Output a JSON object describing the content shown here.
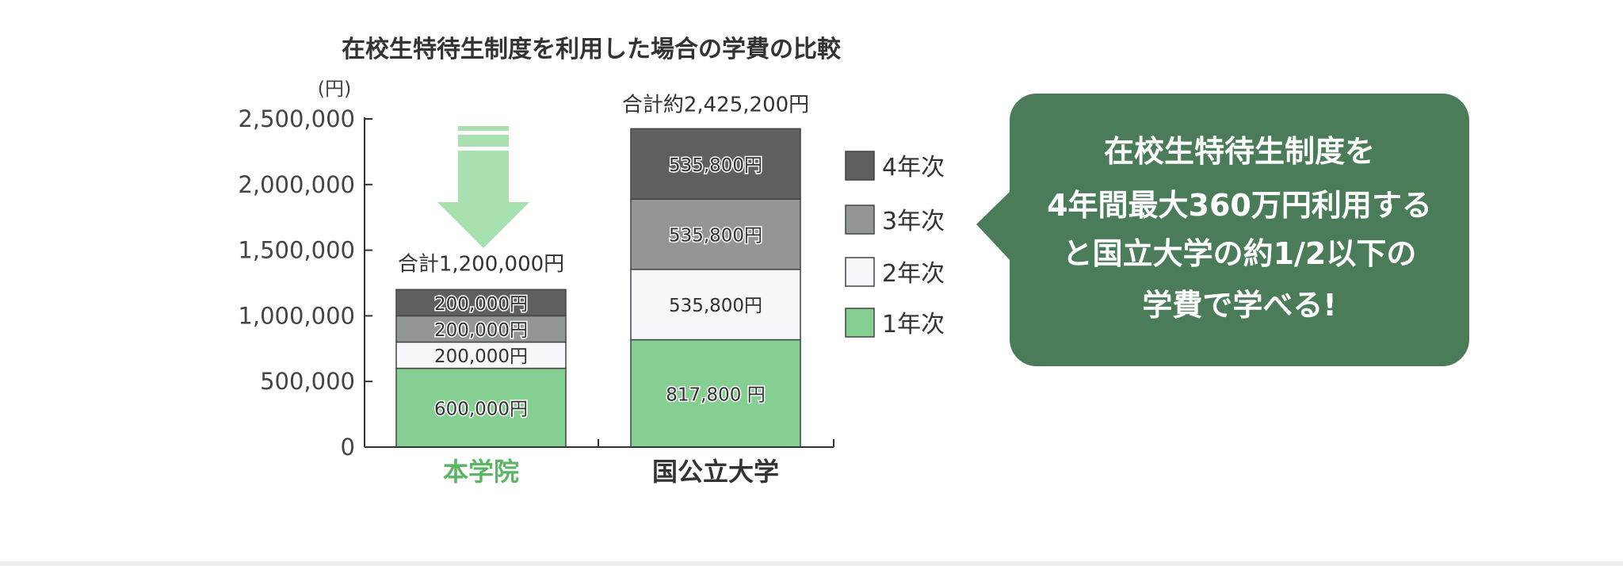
{
  "chart_data": {
    "type": "bar",
    "stacked": true,
    "title": "在校生特待生制度を利用した場合の学費の比較",
    "ylabel": "(円)",
    "ylim": [
      0,
      2500000
    ],
    "yticks": [
      0,
      500000,
      1000000,
      1500000,
      2000000,
      2500000
    ],
    "ytick_labels": [
      "0",
      "500,000",
      "1,000,000",
      "1,500,000",
      "2,000,000",
      "2,500,000"
    ],
    "categories": [
      "本学院",
      "国公立大学"
    ],
    "category_colors": [
      "#5cb564",
      "#333333"
    ],
    "totals": [
      "合計1,200,000円",
      "合計約2,425,200円"
    ],
    "series": [
      {
        "name": "1年次",
        "color": "#86cf92",
        "values": [
          600000,
          817800
        ],
        "labels": [
          "600,000円",
          "817,800 円"
        ]
      },
      {
        "name": "2年次",
        "color": "#f7f7fb",
        "values": [
          200000,
          535800
        ],
        "labels": [
          "200,000円",
          "535,800円"
        ]
      },
      {
        "name": "3年次",
        "color": "#939696",
        "values": [
          200000,
          535800
        ],
        "labels": [
          "200,000円",
          "535,800円"
        ]
      },
      {
        "name": "4年次",
        "color": "#5d5f60",
        "values": [
          200000,
          535800
        ],
        "labels": [
          "200,000円",
          "535,800円"
        ]
      }
    ],
    "legend_placement": "right",
    "grid": false
  },
  "callout": {
    "color": "#4a7c5a",
    "lines": [
      "在校生特待生制度を",
      "4年間最大360万円利用する",
      "と国立大学の約1/2以下の",
      "学費で学べる!"
    ]
  },
  "arrow_color": "#a8e0b0"
}
